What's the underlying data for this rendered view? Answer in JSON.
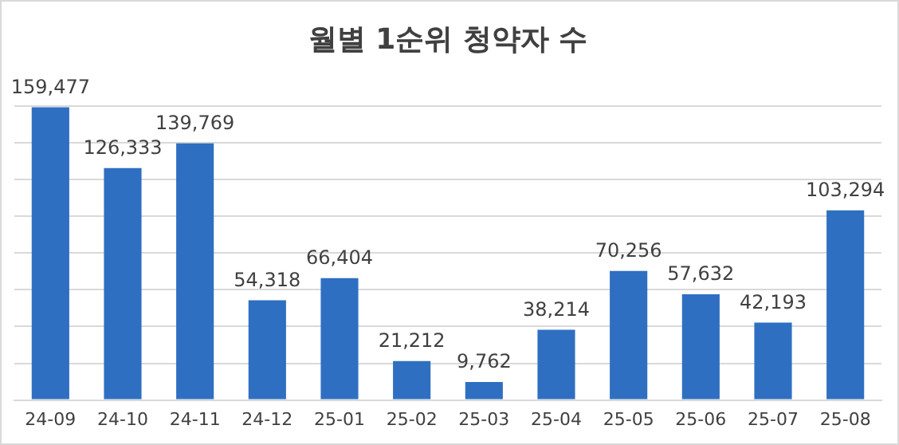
{
  "chart_data": {
    "type": "bar",
    "title": "월별 1순위 청약자 수",
    "categories": [
      "24-09",
      "24-10",
      "24-11",
      "24-12",
      "25-01",
      "25-02",
      "25-03",
      "25-04",
      "25-05",
      "25-06",
      "25-07",
      "25-08"
    ],
    "values": [
      159477,
      126333,
      139769,
      54318,
      66404,
      21212,
      9762,
      38214,
      70256,
      57632,
      42193,
      103294
    ],
    "value_labels": [
      "159,477",
      "126,333",
      "139,769",
      "54,318",
      "66,404",
      "21,212",
      "9,762",
      "38,214",
      "70,256",
      "57,632",
      "42,193",
      "103,294"
    ],
    "color": "#2f6fc1",
    "tick_labels": "x",
    "grid": "y"
  }
}
